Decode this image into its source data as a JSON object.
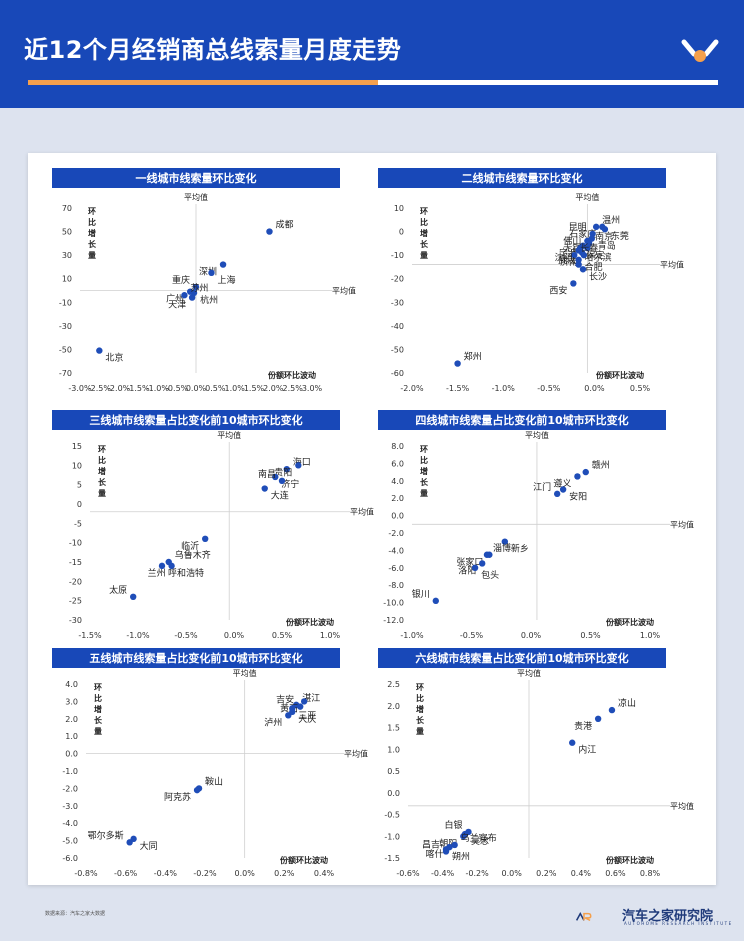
{
  "header": {
    "title": "近12个月经销商总线索量月度走势"
  },
  "footer": {
    "source": "数据来源：汽车之家大数据",
    "brand_cn": "汽车之家研究院",
    "brand_en": "AUTOHOME RESEARCH INSTITUTE"
  },
  "colors": {
    "header": "#1848b8",
    "accent": "#f5a04c",
    "point": "#1f4db8"
  },
  "chart_data": [
    {
      "type": "scatter",
      "title": "一线城市线索量环比变化",
      "xlabel": "份额环比波动",
      "ylabel": "环比增长量",
      "avg_x_label": "平均值",
      "avg_y_label": "平均值",
      "x_ticks": [
        "-3.0%",
        "-2.5%",
        "-2.0%",
        "-1.5%",
        "-1.0%",
        "-0.5%",
        "0.0%",
        "0.5%",
        "1.0%",
        "1.5%",
        "2.0%",
        "2.5%",
        "3.0%"
      ],
      "y_ticks": [
        "70",
        "50",
        "30",
        "10",
        "-10",
        "-30",
        "-50",
        "-70"
      ],
      "xlim": [
        -3.0,
        3.0
      ],
      "ylim": [
        -70,
        70
      ],
      "avg_x": 0.0,
      "avg_y": 0,
      "points": [
        {
          "label": "成都",
          "x": 1.9,
          "y": 50
        },
        {
          "label": "深圳",
          "x": 0.7,
          "y": 22
        },
        {
          "label": "上海",
          "x": 0.4,
          "y": 15
        },
        {
          "label": "重庆",
          "x": 0.0,
          "y": 3
        },
        {
          "label": "杭州",
          "x": -0.05,
          "y": -2
        },
        {
          "label": "广州",
          "x": -0.15,
          "y": -1
        },
        {
          "label": "苏州",
          "x": -0.3,
          "y": -4
        },
        {
          "label": "天津",
          "x": -0.1,
          "y": -6
        },
        {
          "label": "北京",
          "x": -2.5,
          "y": -51
        }
      ]
    },
    {
      "type": "scatter",
      "title": "二线城市线索量环比变化",
      "xlabel": "份额环比波动",
      "ylabel": "环比增长量",
      "avg_x_label": "平均值",
      "avg_y_label": "平均值",
      "x_ticks": [
        "-2.0%",
        "-1.5%",
        "-1.0%",
        "-0.5%",
        "0.0%",
        "0.5%"
      ],
      "y_ticks": [
        "10",
        "0",
        "-10",
        "-20",
        "-30",
        "-40",
        "-50",
        "-60"
      ],
      "xlim": [
        -2.0,
        0.6
      ],
      "ylim": [
        -60,
        10
      ],
      "avg_x": 0.0,
      "avg_y": -14,
      "points": [
        {
          "label": "温州",
          "x": 0.1,
          "y": 2
        },
        {
          "label": "石家庄",
          "x": 0.17,
          "y": 2
        },
        {
          "label": "东莞",
          "x": 0.2,
          "y": 1
        },
        {
          "label": "昆明",
          "x": 0.06,
          "y": -1
        },
        {
          "label": "青岛",
          "x": 0.05,
          "y": -3
        },
        {
          "label": "无锡",
          "x": 0.0,
          "y": -4
        },
        {
          "label": "南京",
          "x": 0.02,
          "y": -5
        },
        {
          "label": "宁波",
          "x": -0.05,
          "y": -6
        },
        {
          "label": "保定",
          "x": -0.08,
          "y": -7
        },
        {
          "label": "佛山",
          "x": 0.0,
          "y": -7
        },
        {
          "label": "哈尔滨",
          "x": -0.1,
          "y": -8
        },
        {
          "label": "武汉",
          "x": -0.06,
          "y": -9
        },
        {
          "label": "长春",
          "x": -0.15,
          "y": -10
        },
        {
          "label": "济南",
          "x": -0.04,
          "y": -10
        },
        {
          "label": "合肥",
          "x": -0.1,
          "y": -12
        },
        {
          "label": "沈阳",
          "x": -0.1,
          "y": -14
        },
        {
          "label": "长沙",
          "x": -0.05,
          "y": -16
        },
        {
          "label": "西安",
          "x": -0.16,
          "y": -22
        },
        {
          "label": "郑州",
          "x": -1.48,
          "y": -56
        }
      ]
    },
    {
      "type": "scatter",
      "title": "三线城市线索量占比变化前10城市环比变化",
      "xlabel": "份额环比波动",
      "ylabel": "环比增长量",
      "avg_x_label": "平均值",
      "avg_y_label": "平均值",
      "x_ticks": [
        "-1.5%",
        "-1.0%",
        "-0.5%",
        "0.0%",
        "0.5%",
        "1.0%"
      ],
      "y_ticks": [
        "15",
        "10",
        "5",
        "0",
        "-5",
        "-10",
        "-15",
        "-20",
        "-25",
        "-30"
      ],
      "xlim": [
        -1.5,
        1.0
      ],
      "ylim": [
        -30,
        15
      ],
      "avg_x": -0.05,
      "avg_y": -2,
      "points": [
        {
          "label": "海口",
          "x": 0.55,
          "y": 9
        },
        {
          "label": "贵阳",
          "x": 0.67,
          "y": 10
        },
        {
          "label": "济宁",
          "x": 0.43,
          "y": 7
        },
        {
          "label": "南昌",
          "x": 0.5,
          "y": 6
        },
        {
          "label": "大连",
          "x": 0.32,
          "y": 4
        },
        {
          "label": "临沂",
          "x": -0.3,
          "y": -9
        },
        {
          "label": "乌鲁木齐",
          "x": -0.68,
          "y": -15
        },
        {
          "label": "兰州",
          "x": -0.65,
          "y": -16
        },
        {
          "label": "呼和浩特",
          "x": -0.75,
          "y": -16
        },
        {
          "label": "太原",
          "x": -1.05,
          "y": -24
        }
      ]
    },
    {
      "type": "scatter",
      "title": "四线城市线索量占比变化前10城市环比变化",
      "xlabel": "份额环比波动",
      "ylabel": "环比增长量",
      "avg_x_label": "平均值",
      "avg_y_label": "平均值",
      "x_ticks": [
        "-1.0%",
        "-0.5%",
        "0.0%",
        "0.5%",
        "1.0%"
      ],
      "y_ticks": [
        "8.0",
        "6.0",
        "4.0",
        "2.0",
        "0.0",
        "-2.0",
        "-4.0",
        "-6.0",
        "-8.0",
        "-10.0",
        "-12.0"
      ],
      "xlim": [
        -1.0,
        1.0
      ],
      "ylim": [
        -12,
        8
      ],
      "avg_x": 0.05,
      "avg_y": -1,
      "points": [
        {
          "label": "赣州",
          "x": 0.46,
          "y": 5
        },
        {
          "label": "遵义",
          "x": 0.39,
          "y": 4.5
        },
        {
          "label": "安阳",
          "x": 0.27,
          "y": 3
        },
        {
          "label": "江门",
          "x": 0.22,
          "y": 2.5
        },
        {
          "label": "新乡",
          "x": -0.22,
          "y": -3
        },
        {
          "label": "张家口",
          "x": -0.35,
          "y": -4.5
        },
        {
          "label": "淄博",
          "x": -0.37,
          "y": -4.5
        },
        {
          "label": "洛阳",
          "x": -0.41,
          "y": -5.5
        },
        {
          "label": "包头",
          "x": -0.47,
          "y": -6
        },
        {
          "label": "银川",
          "x": -0.8,
          "y": -9.8
        }
      ]
    },
    {
      "type": "scatter",
      "title": "五线城市线索量占比变化前10城市环比变化",
      "xlabel": "份额环比波动",
      "ylabel": "环比增长量",
      "avg_x_label": "平均值",
      "avg_y_label": "平均值",
      "x_ticks": [
        "-0.8%",
        "-0.6%",
        "-0.4%",
        "-0.2%",
        "0.0%",
        "0.2%",
        "0.4%"
      ],
      "y_ticks": [
        "4.0",
        "3.0",
        "2.0",
        "1.0",
        "0.0",
        "-1.0",
        "-2.0",
        "-3.0",
        "-4.0",
        "-5.0",
        "-6.0"
      ],
      "xlim": [
        -0.8,
        0.4
      ],
      "ylim": [
        -6,
        4
      ],
      "avg_x": 0.0,
      "avg_y": 0,
      "points": [
        {
          "label": "湛江",
          "x": 0.26,
          "y": 2.8
        },
        {
          "label": "黄石",
          "x": 0.3,
          "y": 3.0
        },
        {
          "label": "三亚",
          "x": 0.24,
          "y": 2.6
        },
        {
          "label": "吉安",
          "x": 0.28,
          "y": 2.7
        },
        {
          "label": "大庆",
          "x": 0.24,
          "y": 2.4
        },
        {
          "label": "泸州",
          "x": 0.22,
          "y": 2.2
        },
        {
          "label": "鞍山",
          "x": -0.23,
          "y": -2.0
        },
        {
          "label": "阿克苏",
          "x": -0.24,
          "y": -2.1
        },
        {
          "label": "大同",
          "x": -0.56,
          "y": -4.9
        },
        {
          "label": "鄂尔多斯",
          "x": -0.58,
          "y": -5.1
        }
      ]
    },
    {
      "type": "scatter",
      "title": "六线城市线索量占比变化前10城市环比变化",
      "xlabel": "份额环比波动",
      "ylabel": "环比增长量",
      "avg_x_label": "平均值",
      "avg_y_label": "平均值",
      "x_ticks": [
        "-0.6%",
        "-0.4%",
        "-0.2%",
        "0.0%",
        "0.2%",
        "0.4%",
        "0.6%",
        "0.8%"
      ],
      "y_ticks": [
        "2.5",
        "2.0",
        "1.5",
        "1.0",
        "0.5",
        "0.0",
        "-0.5",
        "-1.0",
        "-1.5"
      ],
      "xlim": [
        -0.6,
        0.8
      ],
      "ylim": [
        -1.5,
        2.5
      ],
      "avg_x": 0.1,
      "avg_y": -0.3,
      "points": [
        {
          "label": "凉山",
          "x": 0.58,
          "y": 1.9
        },
        {
          "label": "贵港",
          "x": 0.5,
          "y": 1.7
        },
        {
          "label": "内江",
          "x": 0.35,
          "y": 1.15
        },
        {
          "label": "白银",
          "x": -0.25,
          "y": -0.9
        },
        {
          "label": "昊忠",
          "x": -0.27,
          "y": -0.95
        },
        {
          "label": "朝阳",
          "x": -0.28,
          "y": -1.0
        },
        {
          "label": "乌兰察布",
          "x": -0.33,
          "y": -1.2
        },
        {
          "label": "喀什",
          "x": -0.36,
          "y": -1.25
        },
        {
          "label": "朔州",
          "x": -0.38,
          "y": -1.3
        },
        {
          "label": "昌吉",
          "x": -0.38,
          "y": -1.35
        }
      ]
    }
  ]
}
